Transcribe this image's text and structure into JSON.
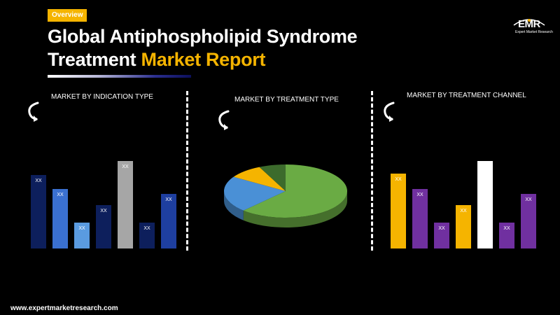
{
  "header": {
    "badge": "Overview",
    "title_line1": "Global Antiphospholipid Syndrome",
    "title_line2_white": "Treatment ",
    "title_line2_accent": "Market Report"
  },
  "logo": {
    "text": "EMR",
    "subtitle": "Expert Market Research"
  },
  "footer": {
    "url": "www.expertmarketresearch.com"
  },
  "colors": {
    "accent": "#f5b400",
    "background": "#000000"
  },
  "chart_data": [
    {
      "type": "bar",
      "title": "MARKET BY INDICATION TYPE",
      "categories": [
        "",
        "",
        "",
        "",
        "",
        "",
        ""
      ],
      "values": [
        105,
        85,
        37,
        62,
        125,
        37,
        78
      ],
      "data_labels": [
        "XX",
        "XX",
        "XX",
        "XX",
        "XX",
        "XX",
        "XX"
      ],
      "colors": [
        "#0d1f5c",
        "#3a70d0",
        "#5a9be0",
        "#0d1f5c",
        "#a6a6a6",
        "#0d1f5c",
        "#1e3fa0"
      ],
      "ylim": [
        0,
        130
      ]
    },
    {
      "type": "pie",
      "title": "MARKET BY TREATMENT TYPE",
      "labels": [
        "",
        "",
        "",
        ""
      ],
      "values": [
        62,
        22,
        9,
        7
      ],
      "colors": [
        "#6aab44",
        "#4a90d6",
        "#f5b400",
        "#3c6b2c"
      ]
    },
    {
      "type": "bar",
      "title": "MARKET BY TREATMENT CHANNEL",
      "categories": [
        "",
        "",
        "",
        "",
        "",
        "",
        ""
      ],
      "values": [
        107,
        85,
        37,
        62,
        125,
        37,
        78
      ],
      "data_labels": [
        "XX",
        "XX",
        "XX",
        "XX",
        "XX",
        "XX",
        "XX"
      ],
      "colors": [
        "#f5b400",
        "#7030a0",
        "#7030a0",
        "#f5b400",
        "#ffffff",
        "#7030a0",
        "#7030a0"
      ],
      "ylim": [
        0,
        130
      ]
    }
  ]
}
